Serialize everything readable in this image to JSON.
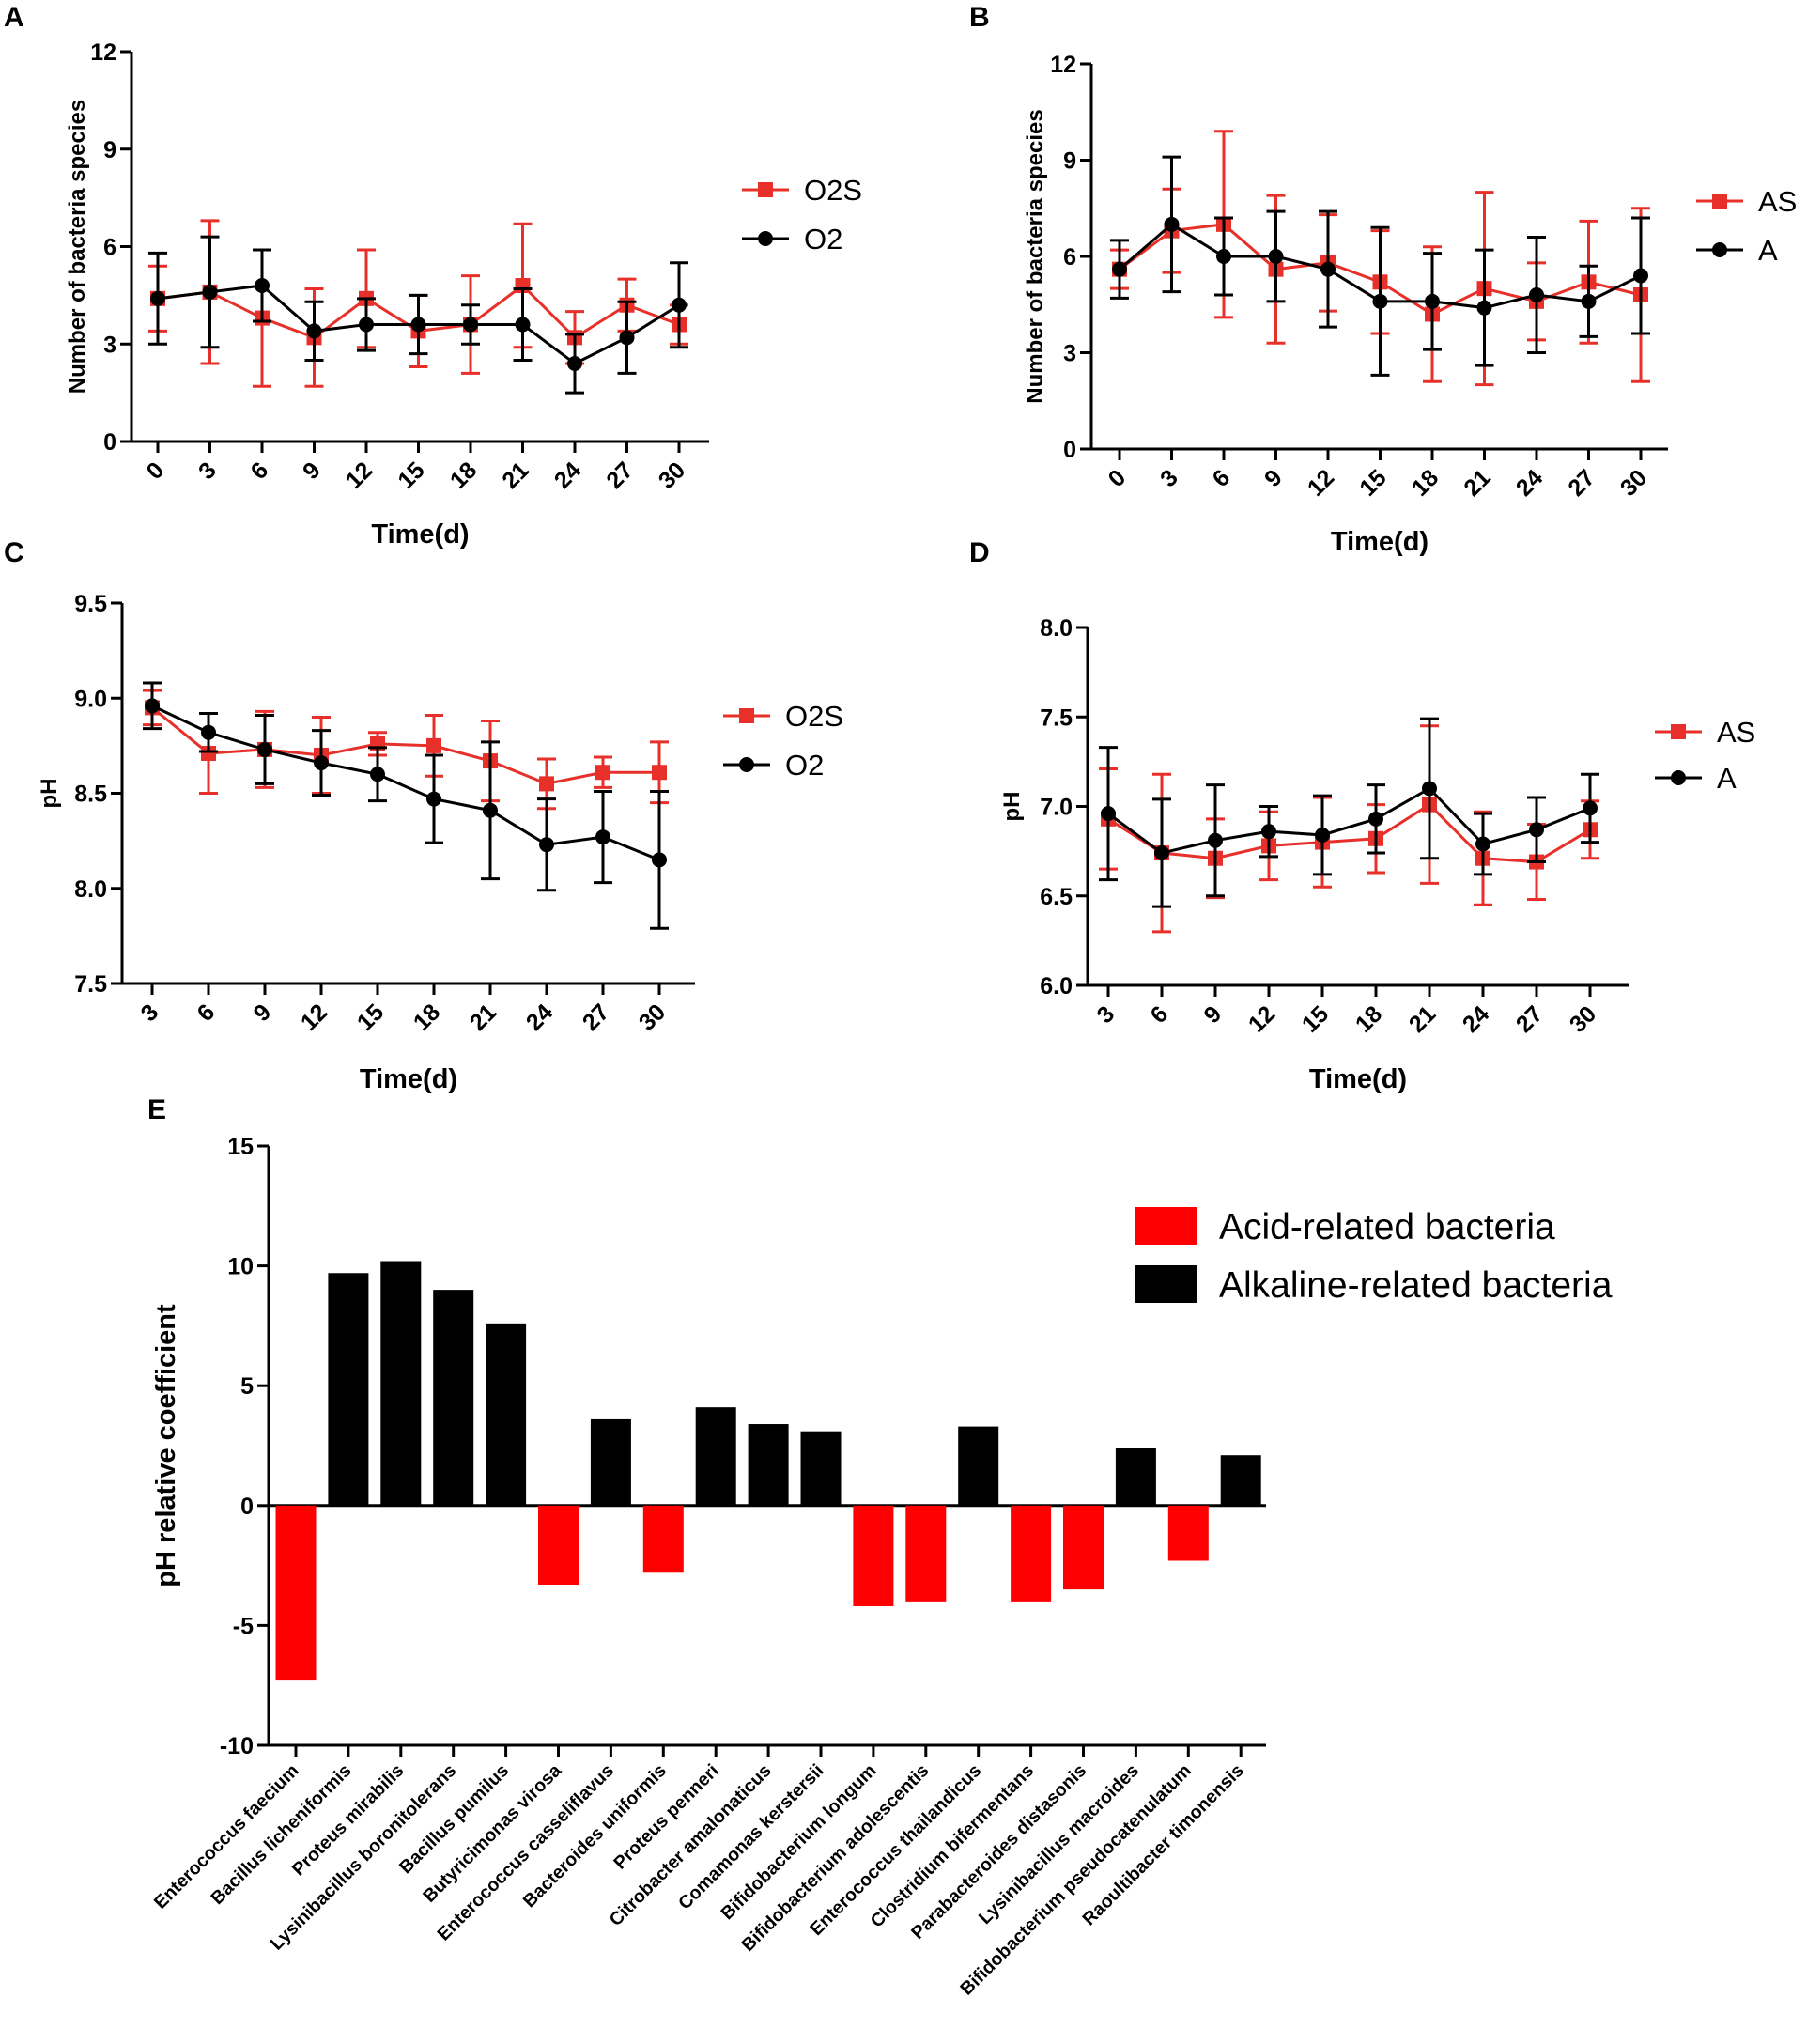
{
  "panel_letters": [
    "A",
    "B",
    "C",
    "D",
    "E"
  ],
  "colors": {
    "red": "#e8302a",
    "black": "#000000",
    "bar_red": "#ff0000"
  },
  "chart_data": [
    {
      "panel": "A",
      "type": "line",
      "xlabel": "Time(d)",
      "ylabel": "Number of bacteria species",
      "x": [
        0,
        3,
        6,
        9,
        12,
        15,
        18,
        21,
        24,
        27,
        30
      ],
      "x_ticks": [
        "0",
        "3",
        "6",
        "9",
        "12",
        "15",
        "18",
        "21",
        "24",
        "27",
        "30"
      ],
      "y_ticks": [
        "0",
        "3",
        "6",
        "9",
        "12"
      ],
      "ylim": [
        0,
        12
      ],
      "legend_position": "right",
      "series": [
        {
          "name": "O2S",
          "color": "#e8302a",
          "marker": "square",
          "values": [
            4.4,
            4.6,
            3.8,
            3.2,
            4.4,
            3.4,
            3.6,
            4.8,
            3.2,
            4.2,
            3.6
          ],
          "errors": [
            1.0,
            2.2,
            2.1,
            1.5,
            1.5,
            1.1,
            1.5,
            1.9,
            0.8,
            0.8,
            0.6
          ]
        },
        {
          "name": "O2",
          "color": "#000000",
          "marker": "circle",
          "values": [
            4.4,
            4.6,
            4.8,
            3.4,
            3.6,
            3.6,
            3.6,
            3.6,
            2.4,
            3.2,
            4.2
          ],
          "errors": [
            1.4,
            1.7,
            1.1,
            0.9,
            0.8,
            0.9,
            0.6,
            1.1,
            0.9,
            1.1,
            1.3
          ]
        }
      ]
    },
    {
      "panel": "B",
      "type": "line",
      "xlabel": "Time(d)",
      "ylabel": "Number of bacteria species",
      "x": [
        0,
        3,
        6,
        9,
        12,
        15,
        18,
        21,
        24,
        27,
        30
      ],
      "x_ticks": [
        "0",
        "3",
        "6",
        "9",
        "12",
        "15",
        "18",
        "21",
        "24",
        "27",
        "30"
      ],
      "y_ticks": [
        "0",
        "3",
        "6",
        "9",
        "12"
      ],
      "ylim": [
        0,
        12
      ],
      "legend_position": "right",
      "series": [
        {
          "name": "AS",
          "color": "#e8302a",
          "marker": "square",
          "values": [
            5.6,
            6.8,
            7.0,
            5.6,
            5.8,
            5.2,
            4.2,
            5.0,
            4.6,
            5.2,
            4.8
          ],
          "errors": [
            0.6,
            1.3,
            2.9,
            2.3,
            1.5,
            1.6,
            2.1,
            3.0,
            1.2,
            1.9,
            2.7
          ]
        },
        {
          "name": "A",
          "color": "#000000",
          "marker": "circle",
          "values": [
            5.6,
            7.0,
            6.0,
            6.0,
            5.6,
            4.6,
            4.6,
            4.4,
            4.8,
            4.6,
            5.4
          ],
          "errors": [
            0.9,
            2.1,
            1.2,
            1.4,
            1.8,
            2.3,
            1.5,
            1.8,
            1.8,
            1.1,
            1.8
          ]
        }
      ]
    },
    {
      "panel": "C",
      "type": "line",
      "xlabel": "Time(d)",
      "ylabel": "pH",
      "x": [
        3,
        6,
        9,
        12,
        15,
        18,
        21,
        24,
        27,
        30
      ],
      "x_ticks": [
        "3",
        "6",
        "9",
        "12",
        "15",
        "18",
        "21",
        "24",
        "27",
        "30"
      ],
      "y_ticks": [
        "7.5",
        "8.0",
        "8.5",
        "9.0",
        "9.5"
      ],
      "ylim": [
        7.5,
        9.5
      ],
      "legend_position": "right",
      "series": [
        {
          "name": "O2S",
          "color": "#e8302a",
          "marker": "square",
          "values": [
            8.95,
            8.71,
            8.73,
            8.7,
            8.76,
            8.75,
            8.67,
            8.55,
            8.61,
            8.61
          ],
          "errors": [
            0.09,
            0.21,
            0.2,
            0.2,
            0.06,
            0.16,
            0.21,
            0.13,
            0.08,
            0.16
          ]
        },
        {
          "name": "O2",
          "color": "#000000",
          "marker": "circle",
          "values": [
            8.96,
            8.82,
            8.73,
            8.66,
            8.6,
            8.47,
            8.41,
            8.23,
            8.27,
            8.15
          ],
          "errors": [
            0.12,
            0.1,
            0.18,
            0.17,
            0.14,
            0.23,
            0.36,
            0.24,
            0.24,
            0.36
          ]
        }
      ]
    },
    {
      "panel": "D",
      "type": "line",
      "xlabel": "Time(d)",
      "ylabel": "pH",
      "x": [
        3,
        6,
        9,
        12,
        15,
        18,
        21,
        24,
        27,
        30
      ],
      "x_ticks": [
        "3",
        "6",
        "9",
        "12",
        "15",
        "18",
        "21",
        "24",
        "27",
        "30"
      ],
      "y_ticks": [
        "6.0",
        "6.5",
        "7.0",
        "7.5",
        "8.0"
      ],
      "ylim": [
        6.0,
        8.0
      ],
      "legend_position": "right",
      "series": [
        {
          "name": "AS",
          "color": "#e8302a",
          "marker": "square",
          "values": [
            6.93,
            6.74,
            6.71,
            6.78,
            6.8,
            6.82,
            7.01,
            6.71,
            6.69,
            6.87
          ],
          "errors": [
            0.28,
            0.44,
            0.22,
            0.19,
            0.25,
            0.19,
            0.44,
            0.26,
            0.21,
            0.16
          ]
        },
        {
          "name": "A",
          "color": "#000000",
          "marker": "circle",
          "values": [
            6.96,
            6.74,
            6.81,
            6.86,
            6.84,
            6.93,
            7.1,
            6.79,
            6.87,
            6.99
          ],
          "errors": [
            0.37,
            0.3,
            0.31,
            0.14,
            0.22,
            0.19,
            0.39,
            0.17,
            0.18,
            0.19
          ]
        }
      ]
    },
    {
      "panel": "E",
      "type": "bar",
      "xlabel": "",
      "ylabel": "pH relative coefficient",
      "ylim": [
        -10,
        15
      ],
      "y_ticks": [
        "-10",
        "-5",
        "0",
        "5",
        "10",
        "15"
      ],
      "legend_position": "top-right",
      "legend": [
        {
          "name": "Acid-related bacteria",
          "color": "#ff0000"
        },
        {
          "name": "Alkaline-related bacteria",
          "color": "#000000"
        }
      ],
      "categories": [
        "Enterococcus faecium",
        "Bacillus licheniformis",
        "Proteus mirabilis",
        "Lysinibacillus boronitolerans",
        "Bacillus pumilus",
        "Butyricimonas virosa",
        "Enterococcus casseliflavus",
        "Bacteroides uniformis",
        "Proteus penneri",
        "Citrobacter amalonaticus",
        "Comamonas kerstersii",
        "Bifidobacterium longum",
        "Bifidobacterium adolescentis",
        "Enterococcus thailandicus",
        "Clostridium bifermentans",
        "Parabacteroides distasonis",
        "Lysinibacillus macroides",
        "Bifidobacterium pseudocatenulatum",
        "Raoultibacter timonensis"
      ],
      "values": [
        -7.3,
        9.7,
        10.2,
        9.0,
        7.6,
        -3.3,
        3.6,
        -2.8,
        4.1,
        3.4,
        3.1,
        -4.2,
        -4.0,
        3.3,
        -4.0,
        -3.5,
        2.4,
        -2.3,
        2.1
      ]
    }
  ]
}
